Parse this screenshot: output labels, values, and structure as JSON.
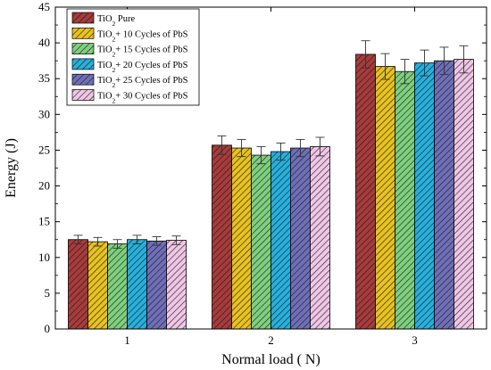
{
  "chart_data": {
    "type": "bar",
    "xlabel": "Normal load ( N)",
    "ylabel": "Energy (J)",
    "ylim": [
      0,
      45
    ],
    "yticks": [
      0,
      5,
      10,
      15,
      20,
      25,
      30,
      35,
      40,
      45
    ],
    "categories": [
      "1",
      "2",
      "3"
    ],
    "grid": false,
    "legend_position": "top-left",
    "series": [
      {
        "name": "TiO2 Pure",
        "label_main": "TiO",
        "label_sub": "2",
        "label_rest": " Pure",
        "color": "#a83b3b",
        "values": [
          12.5,
          25.7,
          38.4
        ],
        "errors": [
          0.6,
          1.3,
          1.9
        ]
      },
      {
        "name": "TiO2+ 10 Cycles of PbS",
        "label_main": "TiO",
        "label_sub": "2",
        "label_rest": "+ 10 Cycles of PbS",
        "color": "#e8c21f",
        "values": [
          12.2,
          25.3,
          36.7
        ],
        "errors": [
          0.6,
          1.2,
          1.8
        ]
      },
      {
        "name": "TiO2+ 15 Cycles of PbS",
        "label_main": "TiO",
        "label_sub": "2",
        "label_rest": "+ 15 Cycles of PbS",
        "color": "#7ed07e",
        "values": [
          11.9,
          24.3,
          36.0
        ],
        "errors": [
          0.6,
          1.2,
          1.7
        ]
      },
      {
        "name": "TiO2+ 20 Cycles of PbS",
        "label_main": "TiO",
        "label_sub": "2",
        "label_rest": "+ 20 Cycles of PbS",
        "color": "#27b0dc",
        "values": [
          12.5,
          24.8,
          37.2
        ],
        "errors": [
          0.6,
          1.2,
          1.8
        ]
      },
      {
        "name": "TiO2+ 25 Cycles of PbS",
        "label_main": "TiO",
        "label_sub": "2",
        "label_rest": "+ 25 Cycles of PbS",
        "color": "#6f6fb8",
        "values": [
          12.3,
          25.3,
          37.5
        ],
        "errors": [
          0.6,
          1.2,
          1.9
        ]
      },
      {
        "name": "TiO2+ 30 Cycles of PbS",
        "label_main": "TiO",
        "label_sub": "2",
        "label_rest": "+ 30 Cycles of PbS",
        "color": "#f0c6e6",
        "values": [
          12.4,
          25.5,
          37.7
        ],
        "errors": [
          0.6,
          1.3,
          1.9
        ]
      }
    ]
  }
}
